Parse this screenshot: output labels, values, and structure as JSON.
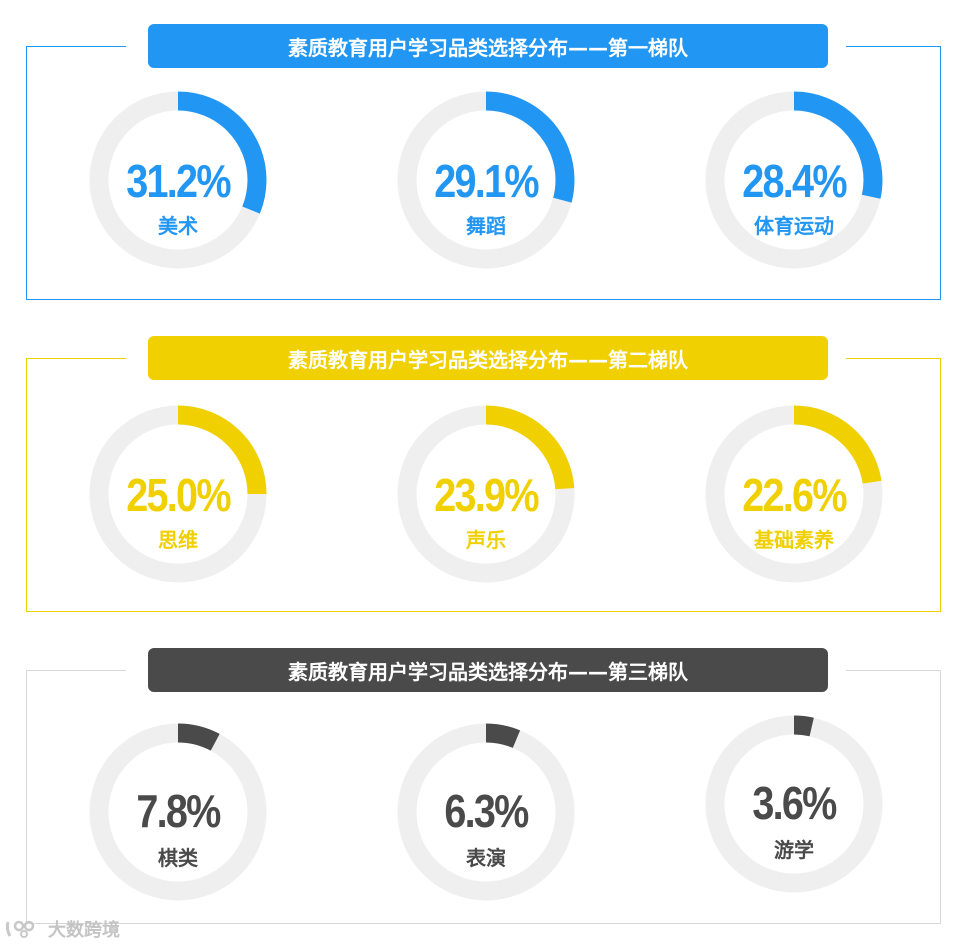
{
  "tiers": [
    {
      "title": "素质教育用户学习品类选择分布——第一梯队",
      "color": "#2196f3",
      "items": [
        {
          "label": "美术",
          "value": 31.2,
          "value_text": "31.2%"
        },
        {
          "label": "舞蹈",
          "value": 29.1,
          "value_text": "29.1%"
        },
        {
          "label": "体育运动",
          "value": 28.4,
          "value_text": "28.4%"
        }
      ]
    },
    {
      "title": "素质教育用户学习品类选择分布——第二梯队",
      "color": "#f0d000",
      "items": [
        {
          "label": "思维",
          "value": 25.0,
          "value_text": "25.0%"
        },
        {
          "label": "声乐",
          "value": 23.9,
          "value_text": "23.9%"
        },
        {
          "label": "基础素养",
          "value": 22.6,
          "value_text": "22.6%"
        }
      ]
    },
    {
      "title": "素质教育用户学习品类选择分布——第三梯队",
      "color": "#4a4a4a",
      "items": [
        {
          "label": "棋类",
          "value": 7.8,
          "value_text": "7.8%"
        },
        {
          "label": "表演",
          "value": 6.3,
          "value_text": "6.3%"
        },
        {
          "label": "游学",
          "value": 3.6,
          "value_text": "3.6%"
        }
      ]
    }
  ],
  "chart_data": [
    {
      "type": "pie",
      "title": "素质教育用户学习品类选择分布——第一梯队",
      "categories": [
        "美术",
        "舞蹈",
        "体育运动"
      ],
      "values": [
        31.2,
        29.1,
        28.4
      ],
      "unit": "%"
    },
    {
      "type": "pie",
      "title": "素质教育用户学习品类选择分布——第二梯队",
      "categories": [
        "思维",
        "声乐",
        "基础素养"
      ],
      "values": [
        25.0,
        23.9,
        22.6
      ],
      "unit": "%"
    },
    {
      "type": "pie",
      "title": "素质教育用户学习品类选择分布——第三梯队",
      "categories": [
        "棋类",
        "表演",
        "游学"
      ],
      "values": [
        7.8,
        6.3,
        3.6
      ],
      "unit": "%"
    }
  ],
  "watermark": {
    "text": "大数跨境",
    "icon": "logo-icon"
  },
  "colors": {
    "ring_track": "#efefef"
  }
}
